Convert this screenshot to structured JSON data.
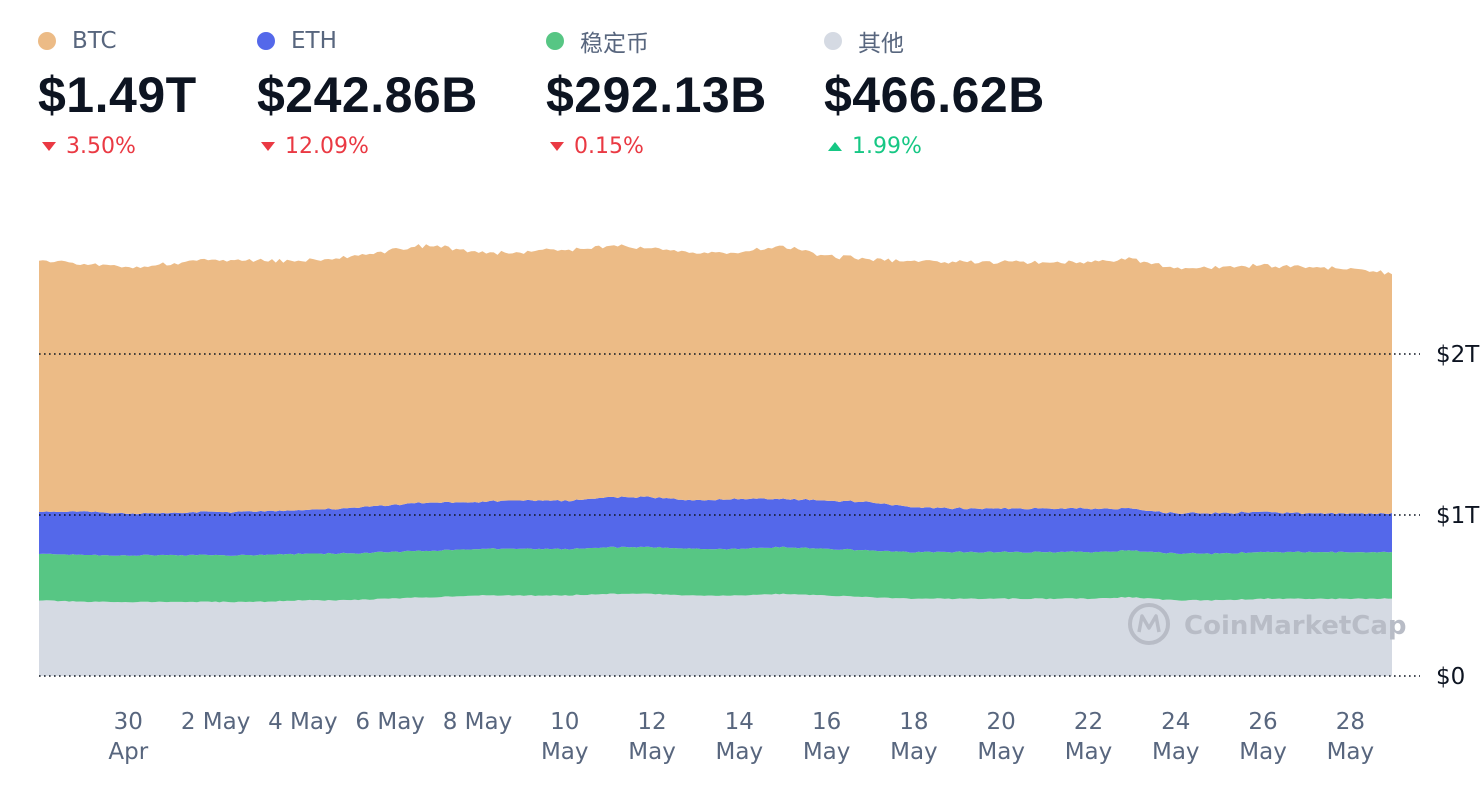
{
  "legend": [
    {
      "label": "BTC",
      "value": "$1.49T",
      "change": "3.50%",
      "direction": "down",
      "color": "#ECBB86"
    },
    {
      "label": "ETH",
      "value": "$242.86B",
      "change": "12.09%",
      "direction": "down",
      "color": "#5468EA"
    },
    {
      "label": "稳定币",
      "value": "$292.13B",
      "change": "0.15%",
      "direction": "down",
      "color": "#57C684"
    },
    {
      "label": "其他",
      "value": "$466.62B",
      "change": "1.99%",
      "direction": "up",
      "color": "#D5DAE3"
    }
  ],
  "watermark": "CoinMarketCap",
  "chart_data": {
    "type": "area",
    "stacked": true,
    "x_ticks": [
      {
        "line1": "30",
        "line2": "Apr"
      },
      {
        "line1": "2 May",
        "line2": ""
      },
      {
        "line1": "4 May",
        "line2": ""
      },
      {
        "line1": "6 May",
        "line2": ""
      },
      {
        "line1": "8 May",
        "line2": ""
      },
      {
        "line1": "10",
        "line2": "May"
      },
      {
        "line1": "12",
        "line2": "May"
      },
      {
        "line1": "14",
        "line2": "May"
      },
      {
        "line1": "16",
        "line2": "May"
      },
      {
        "line1": "18",
        "line2": "May"
      },
      {
        "line1": "20",
        "line2": "May"
      },
      {
        "line1": "22",
        "line2": "May"
      },
      {
        "line1": "24",
        "line2": "May"
      },
      {
        "line1": "26",
        "line2": "May"
      },
      {
        "line1": "28",
        "line2": "May"
      }
    ],
    "y_ticks": [
      {
        "value": 0,
        "label": "$0"
      },
      {
        "value": 1,
        "label": "$1T"
      },
      {
        "value": 2,
        "label": "$2T"
      }
    ],
    "ylim": [
      0,
      2.7
    ],
    "x": [
      "2022-04-28",
      "2022-04-29",
      "2022-04-30",
      "2022-05-01",
      "2022-05-02",
      "2022-05-03",
      "2022-05-04",
      "2022-05-05",
      "2022-05-06",
      "2022-05-07",
      "2022-05-08",
      "2022-05-09",
      "2022-05-10",
      "2022-05-11",
      "2022-05-12",
      "2022-05-13",
      "2022-05-14",
      "2022-05-15",
      "2022-05-16",
      "2022-05-17",
      "2022-05-18",
      "2022-05-19",
      "2022-05-20",
      "2022-05-21",
      "2022-05-22",
      "2022-05-23",
      "2022-05-24",
      "2022-05-25",
      "2022-05-26",
      "2022-05-27",
      "2022-05-28",
      "2022-05-29"
    ],
    "series": [
      {
        "name": "其他",
        "color": "#D5DAE3",
        "values": [
          0.47,
          0.46,
          0.46,
          0.46,
          0.46,
          0.46,
          0.47,
          0.47,
          0.48,
          0.49,
          0.5,
          0.5,
          0.5,
          0.51,
          0.51,
          0.5,
          0.5,
          0.51,
          0.5,
          0.49,
          0.48,
          0.48,
          0.48,
          0.48,
          0.48,
          0.49,
          0.47,
          0.47,
          0.48,
          0.48,
          0.48,
          0.48
        ]
      },
      {
        "name": "稳定币",
        "color": "#57C684",
        "values": [
          0.29,
          0.29,
          0.29,
          0.29,
          0.29,
          0.29,
          0.29,
          0.29,
          0.29,
          0.29,
          0.29,
          0.29,
          0.29,
          0.29,
          0.29,
          0.29,
          0.29,
          0.29,
          0.29,
          0.29,
          0.29,
          0.29,
          0.29,
          0.29,
          0.29,
          0.29,
          0.29,
          0.29,
          0.29,
          0.29,
          0.29,
          0.29
        ]
      },
      {
        "name": "ETH",
        "color": "#5468EA",
        "values": [
          0.26,
          0.27,
          0.26,
          0.26,
          0.27,
          0.27,
          0.27,
          0.28,
          0.29,
          0.3,
          0.29,
          0.3,
          0.3,
          0.31,
          0.31,
          0.3,
          0.31,
          0.3,
          0.3,
          0.3,
          0.28,
          0.27,
          0.27,
          0.27,
          0.27,
          0.26,
          0.25,
          0.25,
          0.25,
          0.24,
          0.24,
          0.24
        ]
      },
      {
        "name": "BTC",
        "color": "#ECBB86",
        "values": [
          1.56,
          1.54,
          1.53,
          1.55,
          1.56,
          1.56,
          1.55,
          1.56,
          1.58,
          1.6,
          1.55,
          1.54,
          1.56,
          1.56,
          1.55,
          1.54,
          1.53,
          1.57,
          1.52,
          1.51,
          1.53,
          1.53,
          1.53,
          1.53,
          1.53,
          1.55,
          1.52,
          1.53,
          1.53,
          1.53,
          1.52,
          1.49
        ]
      }
    ]
  }
}
